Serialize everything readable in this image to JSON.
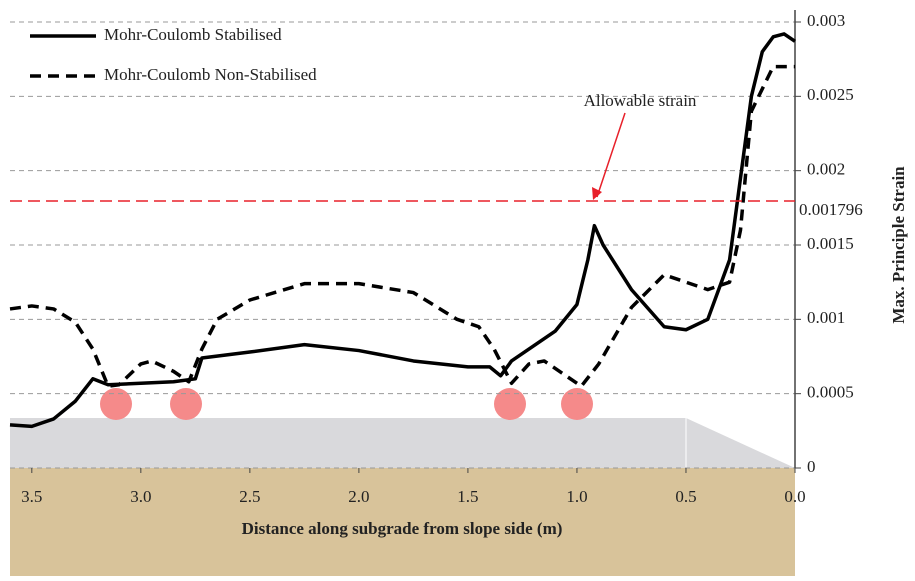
{
  "chart_data": {
    "type": "line",
    "xlabel": "Distance along subgrade from slope side (m)",
    "ylabel": "Max. Principle Strain",
    "xlim": [
      3.6,
      0
    ],
    "ylim": [
      0,
      0.003
    ],
    "xticks": [
      3.5,
      {
        "value": 3.0,
        "label": "3.0"
      },
      2.5,
      {
        "value": 2.0,
        "label": "2.0"
      },
      1.5,
      {
        "value": 1.0,
        "label": "1.0"
      },
      0.5,
      {
        "value": 0.0,
        "label": "0.0"
      }
    ],
    "yticks": [
      0,
      0.0005,
      0.001,
      0.0015,
      0.002,
      0.0025,
      0.003
    ],
    "grid": true,
    "legend": "upper left",
    "threshold": 0.001796,
    "threshold_color": "#e8202a",
    "annotation": "Allowable strain",
    "series": [
      {
        "name": "Mohr-Coulomb Stabilised",
        "color": "#000000",
        "dash": false,
        "x": [
          3.6,
          3.5,
          3.4,
          3.3,
          3.22,
          3.15,
          3.0,
          2.85,
          2.75,
          2.72,
          2.5,
          2.25,
          2.0,
          1.75,
          1.5,
          1.4,
          1.35,
          1.3,
          1.2,
          1.1,
          1.0,
          0.95,
          0.92,
          0.88,
          0.75,
          0.6,
          0.5,
          0.4,
          0.3,
          0.2,
          0.15,
          0.1,
          0.05,
          0.0
        ],
        "values": [
          0.00029,
          0.00028,
          0.00033,
          0.00045,
          0.0006,
          0.00056,
          0.00057,
          0.00058,
          0.0006,
          0.00074,
          0.00078,
          0.00083,
          0.00079,
          0.00072,
          0.00068,
          0.00068,
          0.00062,
          0.00072,
          0.00082,
          0.00092,
          0.0011,
          0.0014,
          0.00163,
          0.0015,
          0.0012,
          0.00095,
          0.00093,
          0.001,
          0.0014,
          0.0025,
          0.0028,
          0.0029,
          0.00292,
          0.00287
        ]
      },
      {
        "name": "Mohr-Coulomb Non-Stabilised",
        "color": "#000000",
        "dash": true,
        "x": [
          3.6,
          3.5,
          3.4,
          3.3,
          3.22,
          3.15,
          3.1,
          3.0,
          2.95,
          2.85,
          2.78,
          2.72,
          2.65,
          2.5,
          2.25,
          2.0,
          1.75,
          1.55,
          1.45,
          1.38,
          1.3,
          1.22,
          1.15,
          1.05,
          0.98,
          0.9,
          0.75,
          0.6,
          0.4,
          0.3,
          0.25,
          0.2,
          0.1,
          0.0
        ],
        "values": [
          0.00107,
          0.00109,
          0.00107,
          0.00098,
          0.0008,
          0.00055,
          0.00056,
          0.0007,
          0.00072,
          0.00065,
          0.00058,
          0.0008,
          0.001,
          0.00113,
          0.00124,
          0.00124,
          0.00118,
          0.001,
          0.00095,
          0.0008,
          0.00057,
          0.0007,
          0.00072,
          0.00062,
          0.00055,
          0.0007,
          0.00108,
          0.0013,
          0.0012,
          0.00125,
          0.0016,
          0.0024,
          0.0027,
          0.0027
        ]
      }
    ]
  }
}
